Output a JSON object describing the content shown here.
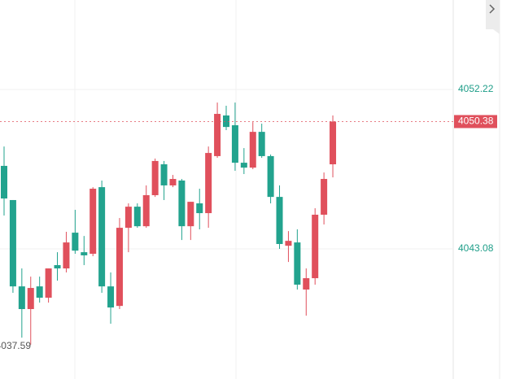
{
  "chart_data": {
    "type": "candlestick",
    "up_color": "#e0505c",
    "down_color": "#22a38e",
    "open": [
      4047.84,
      4045.88,
      4040.93,
      4039.63,
      4040.93,
      4040.28,
      4042.15,
      4041.96,
      4044.01,
      4042.89,
      4042.8,
      4046.62,
      4040.93,
      4039.81,
      4044.29,
      4045.5,
      4044.38,
      4046.16,
      4047.93,
      4046.72,
      4047.0,
      4044.38,
      4045.69,
      4045.13,
      4048.4,
      4050.73,
      4050.17,
      4048.02,
      4047.74,
      4049.79,
      4048.4,
      4046.06,
      4043.26,
      4043.45,
      4040.75,
      4041.4,
      4045.04,
      4047.93
    ],
    "high": [
      4048.95,
      4045.88,
      4041.96,
      4041.49,
      4041.49,
      4041.96,
      4042.89,
      4044.06,
      4045.32,
      4043.82,
      4046.62,
      4047.0,
      4041.73,
      4044.85,
      4045.69,
      4045.69,
      4046.72,
      4048.26,
      4048.12,
      4047.32,
      4047.09,
      4045.78,
      4046.53,
      4048.95,
      4051.47,
      4051.29,
      4051.47,
      4048.86,
      4050.35,
      4050.26,
      4048.49,
      4046.72,
      4044.1,
      4044.2,
      4041.96,
      4045.41,
      4047.46,
      4050.73
    ],
    "low": [
      4044.99,
      4040.56,
      4037.99,
      4037.59,
      4040.0,
      4040.0,
      4041.26,
      4041.73,
      4042.8,
      4042.15,
      4042.66,
      4040.56,
      4038.79,
      4039.63,
      4042.89,
      4044.29,
      4044.29,
      4046.06,
      4045.88,
      4046.62,
      4043.59,
      4043.59,
      4044.2,
      4044.29,
      4048.3,
      4049.89,
      4047.56,
      4047.37,
      4047.65,
      4048.3,
      4045.69,
      4043.08,
      4042.33,
      4040.75,
      4039.25,
      4041.03,
      4044.48,
      4047.18
    ],
    "close": [
      4045.97,
      4040.93,
      4039.63,
      4040.84,
      4040.28,
      4041.96,
      4041.96,
      4043.45,
      4042.98,
      4042.71,
      4046.53,
      4040.93,
      4039.72,
      4044.29,
      4045.5,
      4044.38,
      4046.16,
      4048.12,
      4046.72,
      4047.09,
      4044.38,
      4045.78,
      4045.13,
      4048.58,
      4050.82,
      4050.07,
      4048.02,
      4047.74,
      4049.79,
      4048.4,
      4046.06,
      4043.36,
      4043.54,
      4041.03,
      4041.4,
      4045.04,
      4047.09,
      4050.38
    ],
    "ylim": [
      4035.62,
      4057.35
    ],
    "yticks": [
      4043.08,
      4052.22
    ],
    "grid": true
  }
}
